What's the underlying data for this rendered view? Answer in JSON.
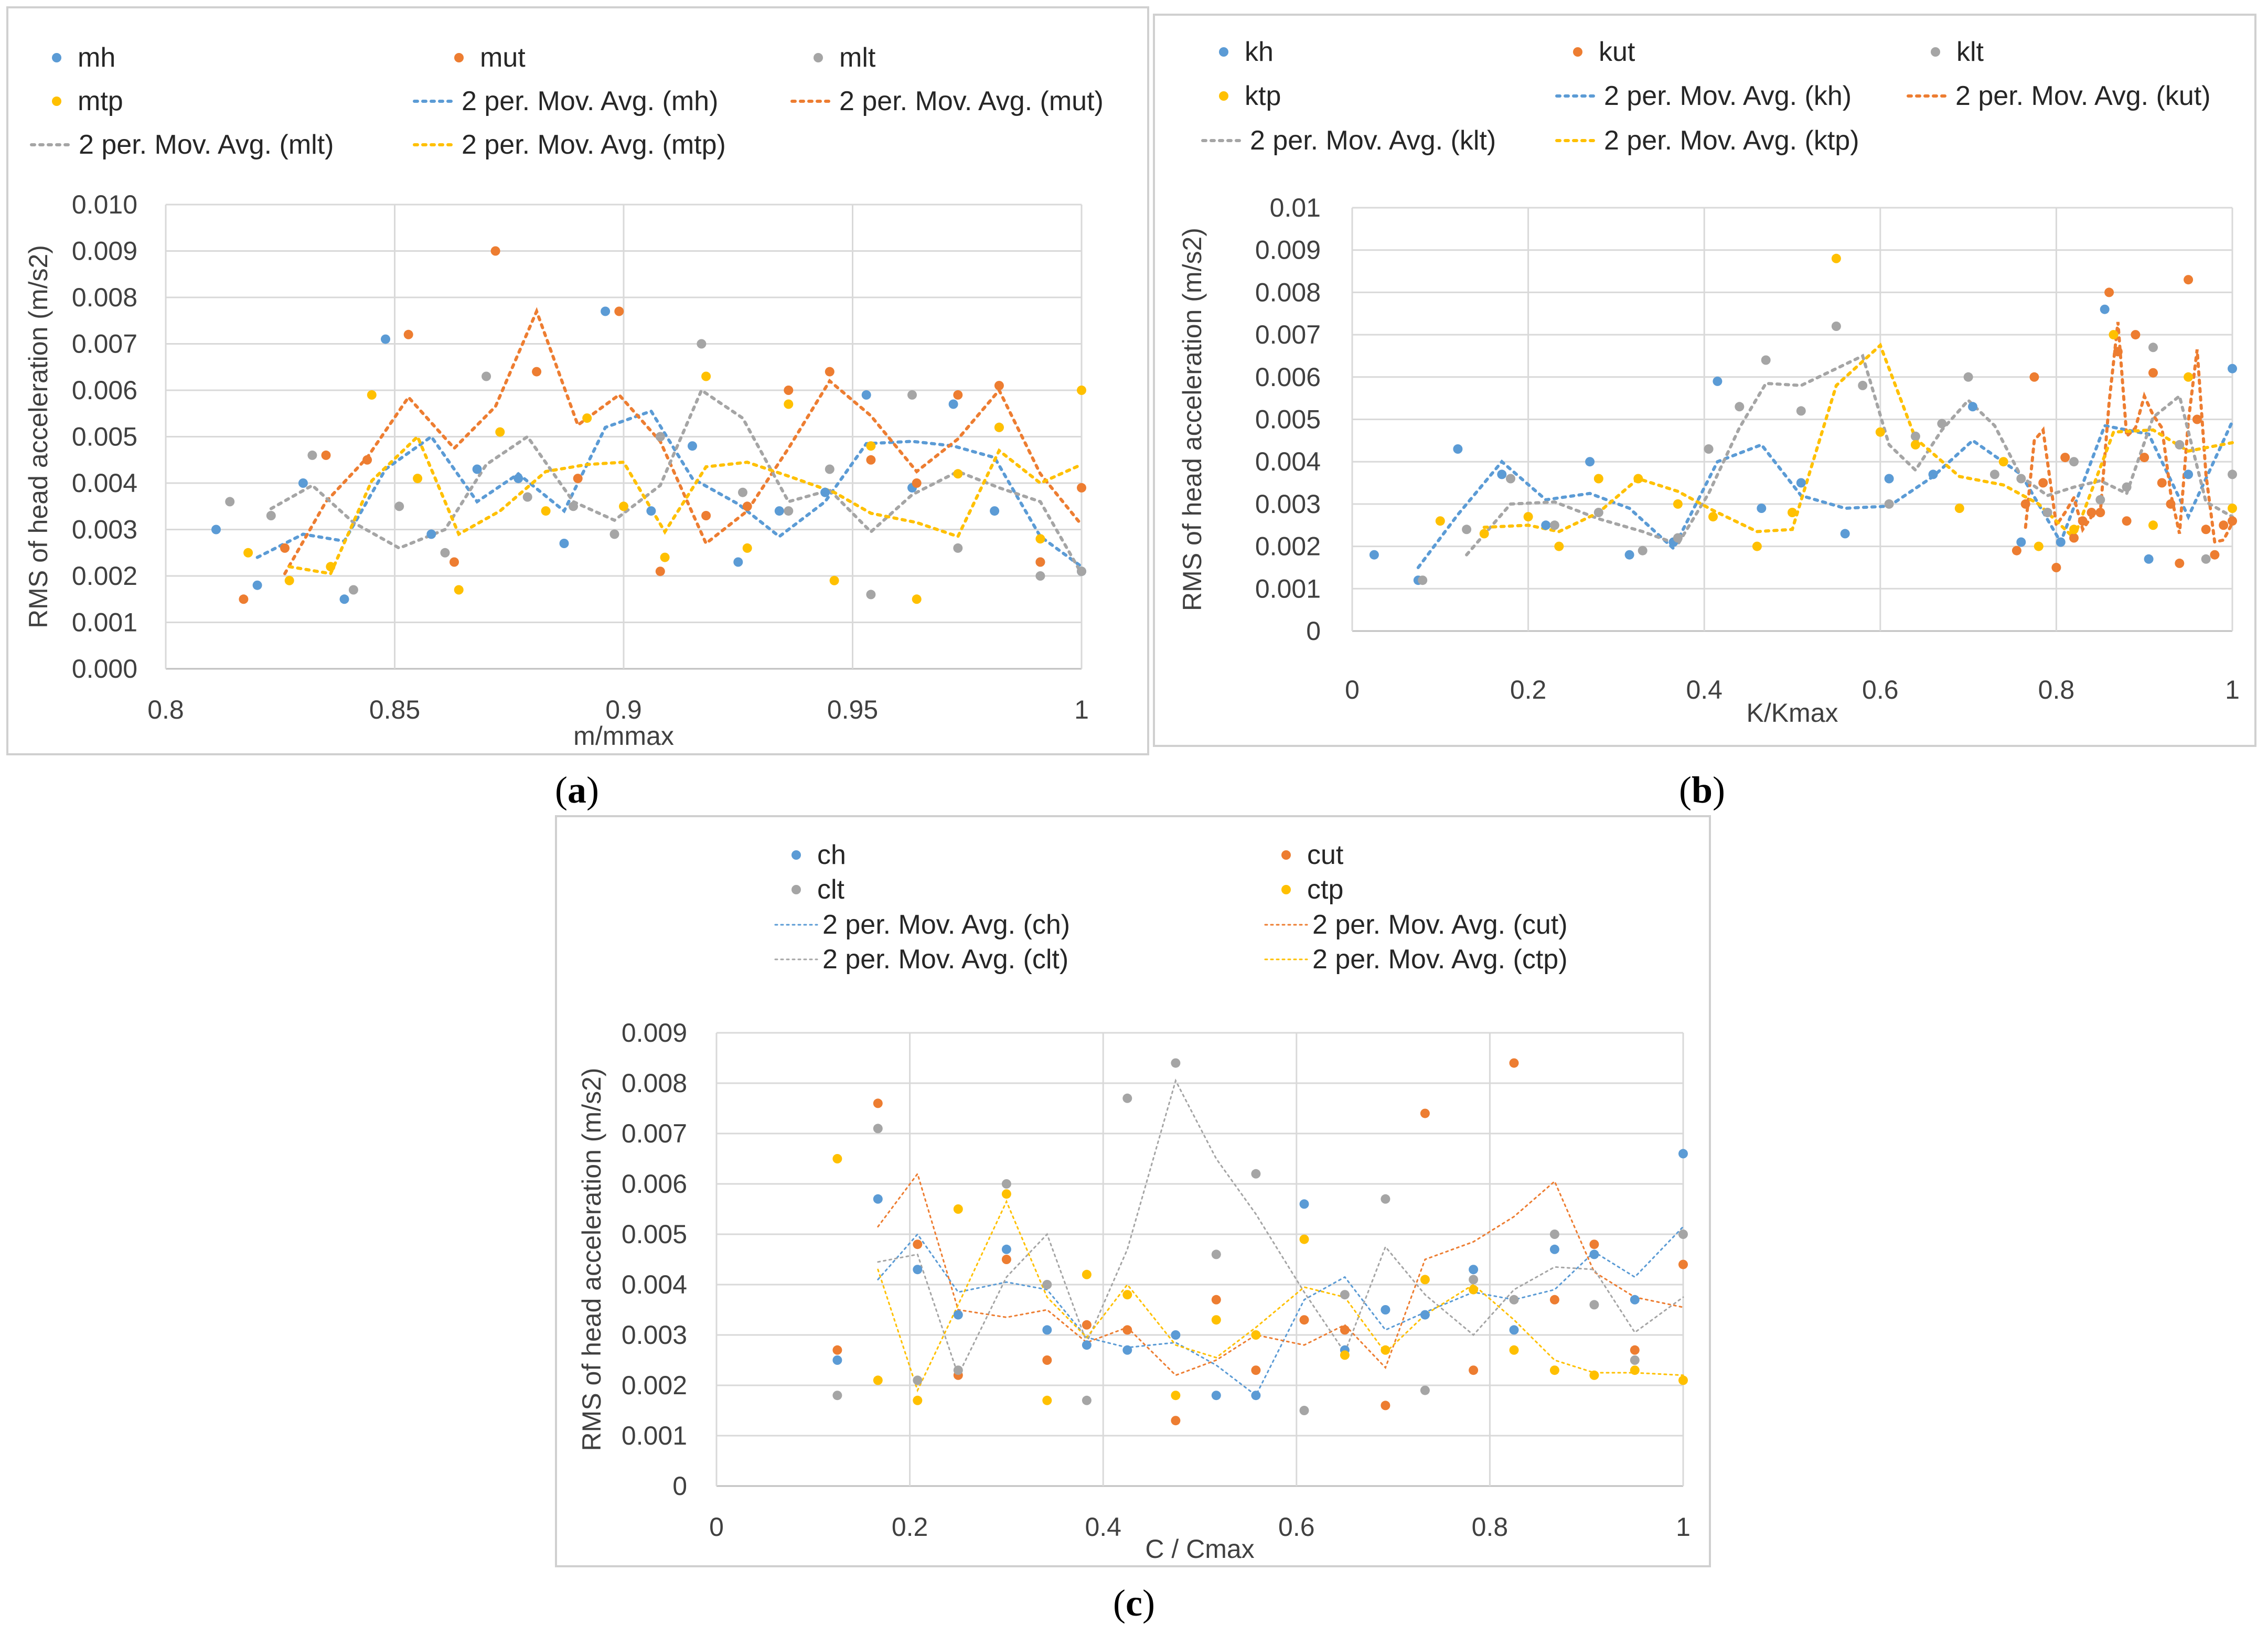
{
  "figure": {
    "panel_labels": [
      {
        "open": "(",
        "letter": "a",
        "close": ")"
      },
      {
        "open": "(",
        "letter": "b",
        "close": ")"
      },
      {
        "open": "(",
        "letter": "c",
        "close": ")"
      }
    ]
  },
  "colors": {
    "h": "#5b9bd5",
    "ut": "#ed7d31",
    "lt": "#a5a5a5",
    "tp": "#ffc000"
  },
  "chart_data": [
    {
      "id": "a",
      "type": "scatter",
      "trend": "2-period moving average (dotted)",
      "xlabel": "m/mmax",
      "ylabel": "RMS of head acceleration (m/s2)",
      "xlim": [
        0.8,
        1.0
      ],
      "ylim": [
        0.0,
        0.01
      ],
      "xticks": [
        "0.8",
        "0.85",
        "0.9",
        "0.95",
        "1"
      ],
      "yticks": [
        "0.000",
        "0.001",
        "0.002",
        "0.003",
        "0.004",
        "0.005",
        "0.006",
        "0.007",
        "0.008",
        "0.009",
        "0.010"
      ],
      "legend": [
        "mh",
        "mut",
        "mlt",
        "mtp",
        "2 per. Mov. Avg. (mh)",
        "2 per. Mov. Avg. (mut)",
        "2 per. Mov. Avg. (mlt)",
        "2 per. Mov. Avg. (mtp)"
      ],
      "series": [
        {
          "name": "mh",
          "color_key": "h",
          "x": [
            0.811,
            0.82,
            0.83,
            0.839,
            0.848,
            0.858,
            0.868,
            0.877,
            0.887,
            0.896,
            0.906,
            0.915,
            0.925,
            0.934,
            0.944,
            0.953,
            0.963,
            0.972,
            0.981,
            0.991,
            1.0
          ],
          "y": [
            0.003,
            0.0018,
            0.004,
            0.0015,
            0.0071,
            0.0029,
            0.0043,
            0.0041,
            0.0027,
            0.0077,
            0.0034,
            0.0048,
            0.0023,
            0.0034,
            0.0038,
            0.0059,
            0.0039,
            0.0057,
            0.0034,
            0.0023,
            0.0021
          ]
        },
        {
          "name": "mut",
          "color_key": "ut",
          "x": [
            0.817,
            0.826,
            0.835,
            0.844,
            0.853,
            0.863,
            0.872,
            0.881,
            0.89,
            0.899,
            0.908,
            0.918,
            0.927,
            0.936,
            0.945,
            0.954,
            0.964,
            0.973,
            0.982,
            0.991,
            1.0
          ],
          "y": [
            0.0015,
            0.0026,
            0.0046,
            0.0045,
            0.0072,
            0.0023,
            0.009,
            0.0064,
            0.0041,
            0.0077,
            0.0021,
            0.0033,
            0.0035,
            0.006,
            0.0064,
            0.0045,
            0.004,
            0.0059,
            0.0061,
            0.0023,
            0.0039
          ]
        },
        {
          "name": "mlt",
          "color_key": "lt",
          "x": [
            0.814,
            0.823,
            0.832,
            0.841,
            0.851,
            0.861,
            0.87,
            0.879,
            0.889,
            0.898,
            0.908,
            0.917,
            0.926,
            0.936,
            0.945,
            0.954,
            0.963,
            0.973,
            0.982,
            0.991,
            1.0
          ],
          "y": [
            0.0036,
            0.0033,
            0.0046,
            0.0017,
            0.0035,
            0.0025,
            0.0063,
            0.0037,
            0.0035,
            0.0029,
            0.005,
            0.007,
            0.0038,
            0.0034,
            0.0043,
            0.0016,
            0.0059,
            0.0026,
            0.0052,
            0.002,
            0.0021
          ]
        },
        {
          "name": "mtp",
          "color_key": "tp",
          "x": [
            0.818,
            0.827,
            0.836,
            0.845,
            0.855,
            0.864,
            0.873,
            0.883,
            0.892,
            0.9,
            0.909,
            0.918,
            0.927,
            0.936,
            0.946,
            0.954,
            0.964,
            0.973,
            0.982,
            0.991,
            1.0
          ],
          "y": [
            0.0025,
            0.0019,
            0.0022,
            0.0059,
            0.0041,
            0.0017,
            0.0051,
            0.0034,
            0.0054,
            0.0035,
            0.0024,
            0.0063,
            0.0026,
            0.0057,
            0.0019,
            0.0048,
            0.0015,
            0.0042,
            0.0052,
            0.0028,
            0.006
          ]
        }
      ]
    },
    {
      "id": "b",
      "type": "scatter",
      "trend": "2-period moving average (dotted)",
      "xlabel": "K/Kmax",
      "ylabel": "RMS of head acceleration (m/s2)",
      "xlim": [
        0,
        1
      ],
      "ylim": [
        0,
        0.01
      ],
      "xticks": [
        "0",
        "0.2",
        "0.4",
        "0.6",
        "0.8",
        "1"
      ],
      "yticks": [
        "0",
        "0.001",
        "0.002",
        "0.003",
        "0.004",
        "0.005",
        "0.006",
        "0.007",
        "0.008",
        "0.009",
        "0.01"
      ],
      "legend": [
        "kh",
        "kut",
        "klt",
        "ktp",
        "2 per. Mov. Avg. (kh)",
        "2 per. Mov. Avg. (kut)",
        "2 per. Mov. Avg. (klt)",
        "2 per. Mov. Avg. (ktp)"
      ],
      "series": [
        {
          "name": "kh",
          "color_key": "h",
          "x": [
            0.025,
            0.075,
            0.12,
            0.17,
            0.22,
            0.27,
            0.315,
            0.365,
            0.415,
            0.465,
            0.51,
            0.56,
            0.61,
            0.66,
            0.705,
            0.76,
            0.805,
            0.855,
            0.905,
            0.95,
            1.0
          ],
          "y": [
            0.0018,
            0.0012,
            0.0043,
            0.0037,
            0.0025,
            0.004,
            0.0018,
            0.0021,
            0.0059,
            0.0029,
            0.0035,
            0.0023,
            0.0036,
            0.0037,
            0.0053,
            0.0021,
            0.0021,
            0.0076,
            0.0017,
            0.0037,
            0.0062
          ]
        },
        {
          "name": "kut",
          "color_key": "ut",
          "x": [
            0.755,
            0.765,
            0.775,
            0.785,
            0.8,
            0.81,
            0.82,
            0.83,
            0.84,
            0.85,
            0.86,
            0.87,
            0.88,
            0.89,
            0.9,
            0.91,
            0.92,
            0.93,
            0.94,
            0.95,
            0.96,
            0.97,
            0.98,
            0.99,
            1.0
          ],
          "y": [
            0.0019,
            0.003,
            0.006,
            0.0035,
            0.0015,
            0.0041,
            0.0022,
            0.0026,
            0.0028,
            0.0028,
            0.008,
            0.0066,
            0.0026,
            0.007,
            0.0041,
            0.0061,
            0.0035,
            0.003,
            0.0016,
            0.0083,
            0.005,
            0.0024,
            0.0018,
            0.0025,
            0.0026
          ]
        },
        {
          "name": "klt",
          "color_key": "lt",
          "x": [
            0.08,
            0.13,
            0.18,
            0.23,
            0.28,
            0.33,
            0.37,
            0.405,
            0.44,
            0.47,
            0.51,
            0.55,
            0.58,
            0.61,
            0.64,
            0.67,
            0.7,
            0.73,
            0.76,
            0.79,
            0.82,
            0.85,
            0.88,
            0.91,
            0.94,
            0.97,
            1.0
          ],
          "y": [
            0.0012,
            0.0024,
            0.0036,
            0.0025,
            0.0028,
            0.0019,
            0.0022,
            0.0043,
            0.0053,
            0.0064,
            0.0052,
            0.0072,
            0.0058,
            0.003,
            0.0046,
            0.0049,
            0.006,
            0.0037,
            0.0036,
            0.0028,
            0.004,
            0.0031,
            0.0034,
            0.0067,
            0.0044,
            0.0017,
            0.0037
          ]
        },
        {
          "name": "ktp",
          "color_key": "tp",
          "x": [
            0.1,
            0.15,
            0.2,
            0.235,
            0.28,
            0.325,
            0.37,
            0.41,
            0.46,
            0.5,
            0.55,
            0.6,
            0.64,
            0.69,
            0.74,
            0.78,
            0.82,
            0.865,
            0.91,
            0.95,
            1.0
          ],
          "y": [
            0.0026,
            0.0023,
            0.0027,
            0.002,
            0.0036,
            0.0036,
            0.003,
            0.0027,
            0.002,
            0.0028,
            0.0088,
            0.0047,
            0.0044,
            0.0029,
            0.004,
            0.002,
            0.0024,
            0.007,
            0.0025,
            0.006,
            0.0029
          ]
        }
      ]
    },
    {
      "id": "c",
      "type": "scatter",
      "trend": "2-period moving average (thin dotted)",
      "xlabel": "C / Cmax",
      "ylabel": "RMS of head acceleration (m/s2)",
      "xlim": [
        0,
        1
      ],
      "ylim": [
        0,
        0.009
      ],
      "xticks": [
        "0",
        "0.2",
        "0.4",
        "0.6",
        "0.8",
        "1"
      ],
      "yticks": [
        "0",
        "0.001",
        "0.002",
        "0.003",
        "0.004",
        "0.005",
        "0.006",
        "0.007",
        "0.008",
        "0.009"
      ],
      "legend": [
        "ch",
        "cut",
        "clt",
        "ctp",
        "2 per. Mov. Avg. (ch)",
        "2 per. Mov. Avg. (cut)",
        "2 per. Mov. Avg. (clt)",
        "2 per. Mov. Avg. (ctp)"
      ],
      "series": [
        {
          "name": "ch",
          "color_key": "h",
          "x": [
            0.125,
            0.167,
            0.208,
            0.25,
            0.3,
            0.342,
            0.383,
            0.425,
            0.475,
            0.517,
            0.558,
            0.608,
            0.65,
            0.692,
            0.733,
            0.783,
            0.825,
            0.867,
            0.908,
            0.95,
            1.0
          ],
          "y": [
            0.0025,
            0.0057,
            0.0043,
            0.0034,
            0.0047,
            0.0031,
            0.0028,
            0.0027,
            0.003,
            0.0018,
            0.0018,
            0.0056,
            0.0027,
            0.0035,
            0.0034,
            0.0043,
            0.0031,
            0.0047,
            0.0046,
            0.0037,
            0.0066
          ]
        },
        {
          "name": "cut",
          "color_key": "ut",
          "x": [
            0.125,
            0.167,
            0.208,
            0.25,
            0.3,
            0.342,
            0.383,
            0.425,
            0.475,
            0.517,
            0.558,
            0.608,
            0.65,
            0.692,
            0.733,
            0.783,
            0.825,
            0.867,
            0.908,
            0.95,
            1.0
          ],
          "y": [
            0.0027,
            0.0076,
            0.0048,
            0.0022,
            0.0045,
            0.0025,
            0.0032,
            0.0031,
            0.0013,
            0.0037,
            0.0023,
            0.0033,
            0.0031,
            0.0016,
            0.0074,
            0.0023,
            0.0084,
            0.0037,
            0.0048,
            0.0027,
            0.0044
          ]
        },
        {
          "name": "clt",
          "color_key": "lt",
          "x": [
            0.125,
            0.167,
            0.208,
            0.25,
            0.3,
            0.342,
            0.383,
            0.425,
            0.475,
            0.517,
            0.558,
            0.608,
            0.65,
            0.692,
            0.733,
            0.783,
            0.825,
            0.867,
            0.908,
            0.95,
            1.0
          ],
          "y": [
            0.0018,
            0.0071,
            0.0021,
            0.0023,
            0.006,
            0.004,
            0.0017,
            0.0077,
            0.0084,
            0.0046,
            0.0062,
            0.0015,
            0.0038,
            0.0057,
            0.0019,
            0.0041,
            0.0037,
            0.005,
            0.0036,
            0.0025,
            0.005
          ]
        },
        {
          "name": "ctp",
          "color_key": "tp",
          "x": [
            0.125,
            0.167,
            0.208,
            0.25,
            0.3,
            0.342,
            0.383,
            0.425,
            0.475,
            0.517,
            0.558,
            0.608,
            0.65,
            0.692,
            0.733,
            0.783,
            0.825,
            0.867,
            0.908,
            0.95,
            1.0
          ],
          "y": [
            0.0065,
            0.0021,
            0.0017,
            0.0055,
            0.0058,
            0.0017,
            0.0042,
            0.0038,
            0.0018,
            0.0033,
            0.003,
            0.0049,
            0.0026,
            0.0027,
            0.0041,
            0.0039,
            0.0027,
            0.0023,
            0.0022,
            0.0023,
            0.0021
          ]
        }
      ]
    }
  ]
}
